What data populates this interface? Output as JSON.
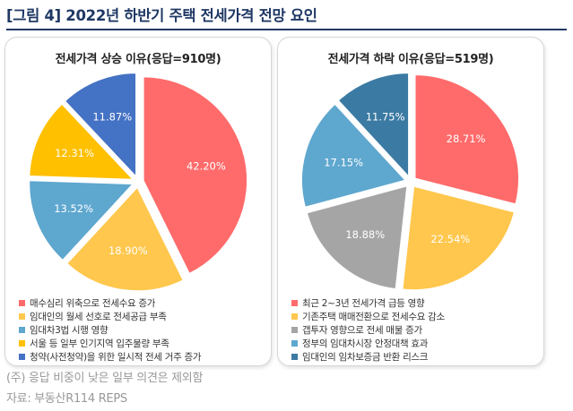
{
  "title": "[그림 4] 2022년 하반기 주택 전세가격 전망 요인",
  "chart_data": [
    {
      "type": "pie",
      "title": "전세가격 상승 이유(응답=910명)",
      "categories": [
        "매수심리 위축으로 전세수요 증가",
        "임대인의 월세 선호로 전세공급 부족",
        "임대차3법 시행 영향",
        "서울 등 일부 인기지역 입주물량 부족",
        "청약(사전청약)을 위한 일시적 전세 거주 증가"
      ],
      "values": [
        42.2,
        18.9,
        13.52,
        12.31,
        11.87
      ],
      "labels": [
        "42.20%",
        "18.90%",
        "13.52%",
        "12.31%",
        "11.87%"
      ],
      "colors": [
        "#ff6b6b",
        "#ffc74d",
        "#5ea7cf",
        "#ffc000",
        "#4472c4"
      ],
      "legend_position": "bottom"
    },
    {
      "type": "pie",
      "title": "전세가격 하락 이유(응답=519명)",
      "categories": [
        "최근 2~3년 전세가격 급등 영향",
        "기존주택 매매전환으로 전세수요 감소",
        "갭투자 영향으로 전세 매물 증가",
        "정부의 임대차시장 안정대책 효과",
        "임대인의 임차보증금 반환 리스크"
      ],
      "values": [
        28.71,
        22.54,
        18.88,
        17.15,
        11.75
      ],
      "labels": [
        "28.71%",
        "22.54%",
        "18.88%",
        "17.15%",
        "11.75%"
      ],
      "colors": [
        "#ff6b6b",
        "#ffc74d",
        "#a5a5a5",
        "#5ea7cf",
        "#3b7aa3"
      ],
      "legend_position": "bottom"
    }
  ],
  "notes": {
    "note1": "(주) 응답 비중이 낮은 일부 의견은 제외함",
    "note2": "자료: 부동산R114 REPS"
  }
}
